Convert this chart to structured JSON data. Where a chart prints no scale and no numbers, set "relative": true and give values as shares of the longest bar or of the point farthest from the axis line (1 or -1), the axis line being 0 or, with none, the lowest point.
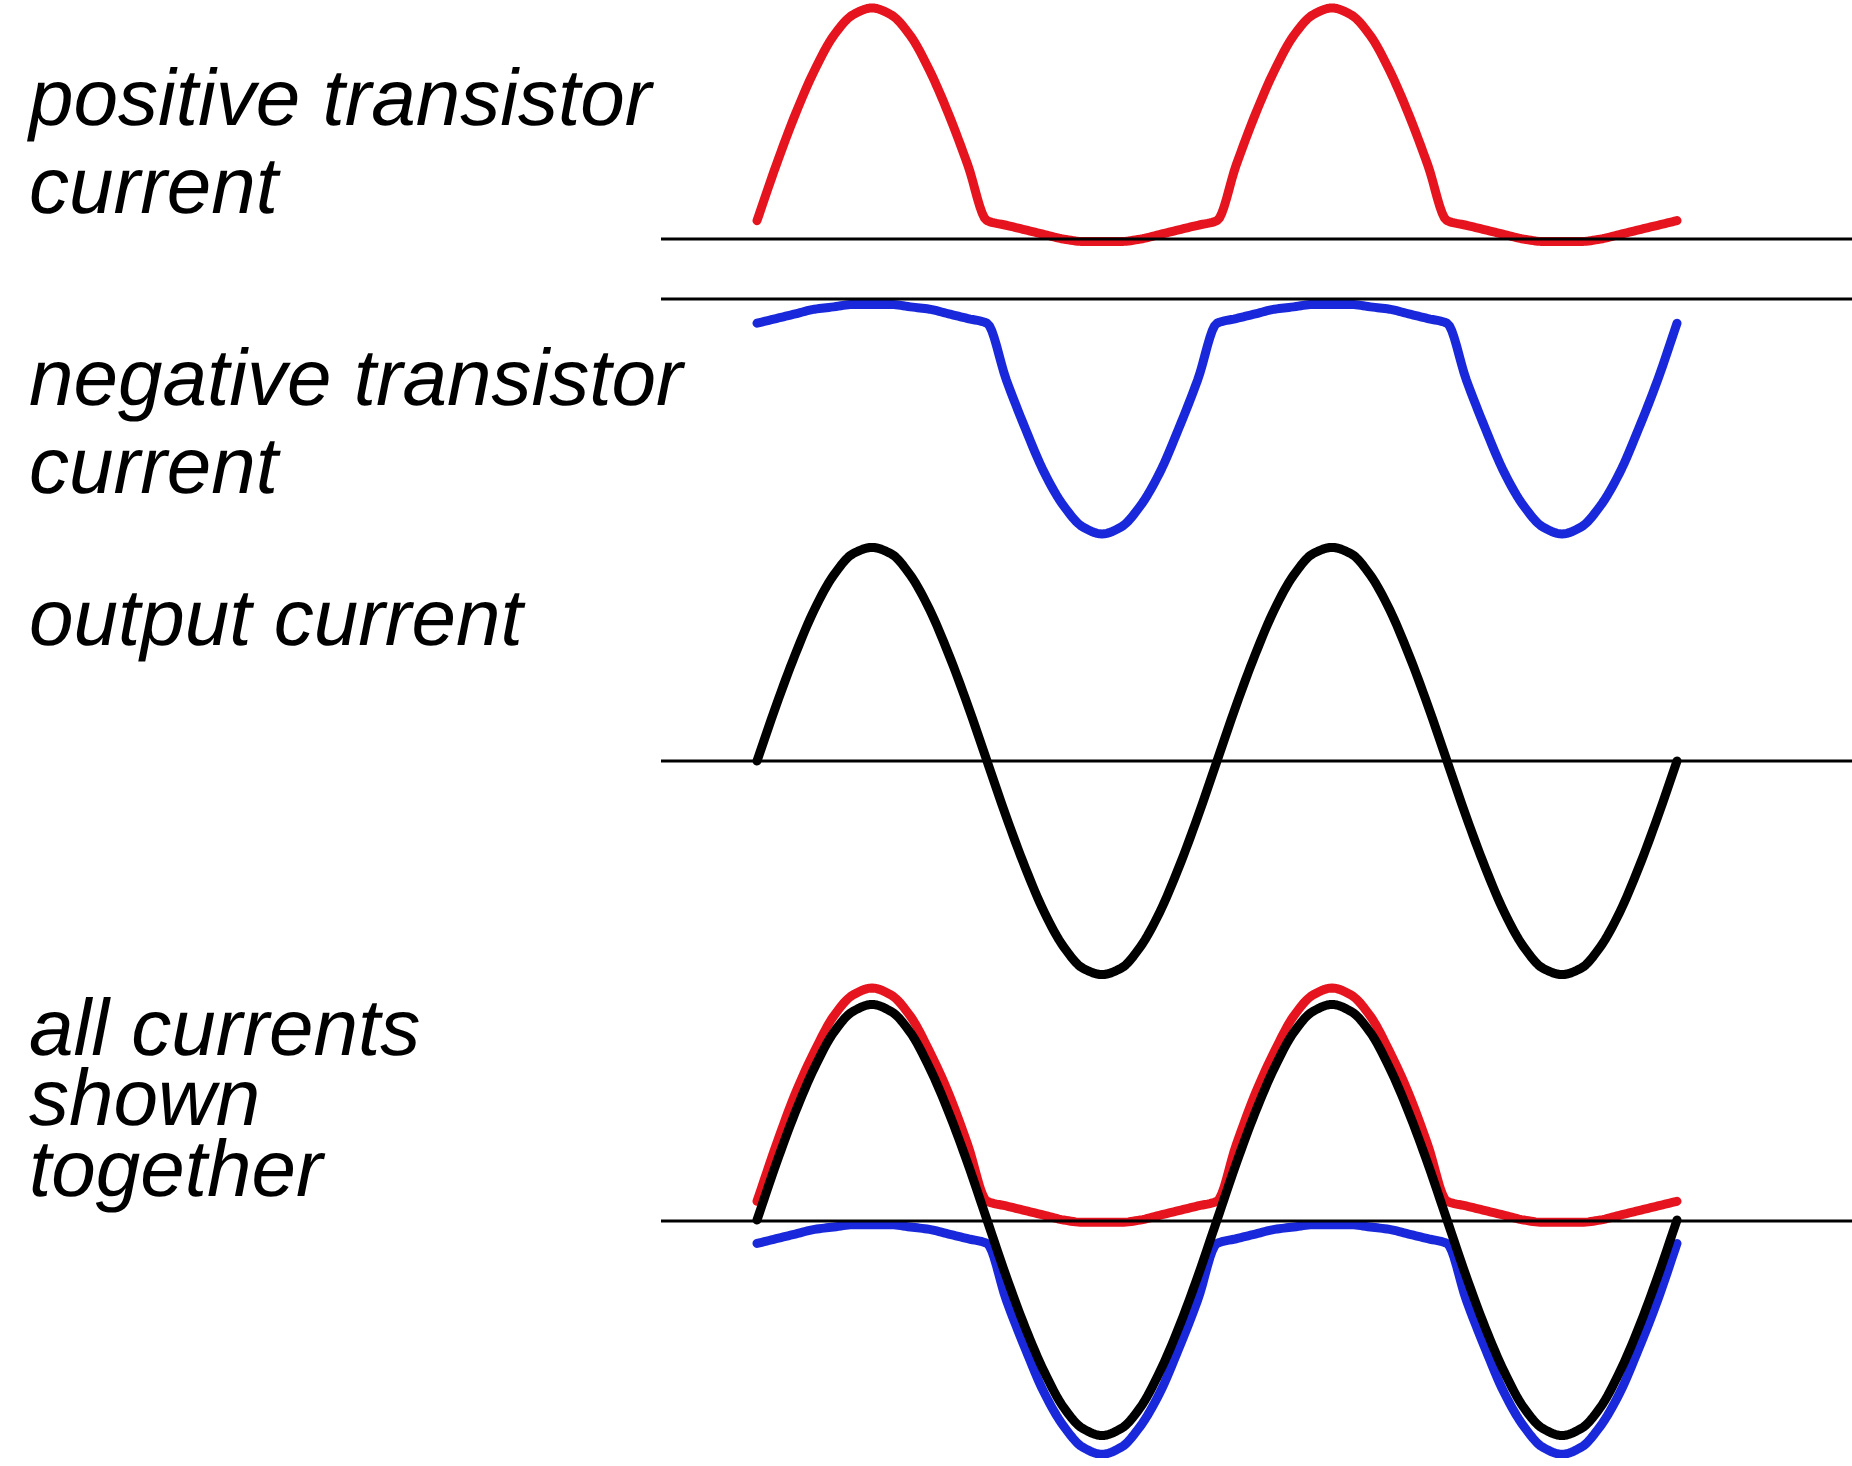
{
  "chart_data": [
    {
      "type": "line",
      "title": "positive transistor current",
      "relative": true,
      "categories": [
        null,
        null,
        null,
        null,
        null,
        null,
        null,
        null,
        null,
        null,
        null,
        null,
        null,
        null,
        null,
        null,
        null,
        null,
        null,
        null,
        null,
        null,
        null,
        null,
        null,
        null,
        null,
        null,
        null,
        null,
        null,
        null,
        null,
        null,
        null,
        null,
        null,
        null,
        null,
        null,
        null,
        null,
        null,
        null,
        null,
        null,
        null,
        null,
        null
      ],
      "series": [
        {
          "color": "#e6141e",
          "values": [
            0.08,
            0.32,
            0.54,
            0.73,
            0.88,
            0.97,
            1.0,
            0.97,
            0.88,
            0.73,
            0.54,
            0.32,
            0.08,
            0.06,
            0.04,
            0.02,
            0.0,
            -0.01,
            -0.01,
            -0.01,
            0.0,
            0.02,
            0.04,
            0.06,
            0.08,
            0.32,
            0.54,
            0.73,
            0.88,
            0.97,
            1.0,
            0.97,
            0.88,
            0.73,
            0.54,
            0.32,
            0.08,
            0.06,
            0.04,
            0.02,
            0.0,
            -0.01,
            -0.01,
            -0.01,
            0.0,
            0.02,
            0.04,
            0.06,
            0.08
          ]
        }
      ]
    },
    {
      "type": "line",
      "title": "negative transistor current",
      "relative": true,
      "categories": [
        null,
        null,
        null,
        null,
        null,
        null,
        null,
        null,
        null,
        null,
        null,
        null,
        null,
        null,
        null,
        null,
        null,
        null,
        null,
        null,
        null,
        null,
        null,
        null,
        null,
        null,
        null,
        null,
        null,
        null,
        null,
        null,
        null,
        null,
        null,
        null,
        null,
        null,
        null,
        null,
        null,
        null,
        null,
        null,
        null,
        null,
        null,
        null,
        null
      ],
      "series": [
        {
          "color": "#1a28dc",
          "values": [
            -0.1,
            -0.08,
            -0.06,
            -0.04,
            -0.03,
            -0.02,
            -0.02,
            -0.02,
            -0.03,
            -0.04,
            -0.06,
            -0.08,
            -0.1,
            -0.34,
            -0.55,
            -0.74,
            -0.88,
            -0.97,
            -1.0,
            -0.97,
            -0.88,
            -0.74,
            -0.55,
            -0.34,
            -0.1,
            -0.08,
            -0.06,
            -0.04,
            -0.03,
            -0.02,
            -0.02,
            -0.02,
            -0.03,
            -0.04,
            -0.06,
            -0.08,
            -0.1,
            -0.34,
            -0.55,
            -0.74,
            -0.88,
            -0.97,
            -1.0,
            -0.97,
            -0.88,
            -0.74,
            -0.55,
            -0.34,
            -0.1
          ]
        }
      ]
    },
    {
      "type": "line",
      "title": "output current",
      "relative": true,
      "categories": [
        null,
        null,
        null,
        null,
        null,
        null,
        null,
        null,
        null,
        null,
        null,
        null,
        null,
        null,
        null,
        null,
        null,
        null,
        null,
        null,
        null,
        null,
        null,
        null,
        null,
        null,
        null,
        null,
        null,
        null,
        null,
        null,
        null,
        null,
        null,
        null,
        null,
        null,
        null,
        null,
        null,
        null,
        null,
        null,
        null,
        null,
        null,
        null,
        null
      ],
      "series": [
        {
          "color": "#000000",
          "values": [
            0,
            0.26,
            0.5,
            0.71,
            0.87,
            0.97,
            1.0,
            0.97,
            0.87,
            0.71,
            0.5,
            0.26,
            0,
            -0.26,
            -0.5,
            -0.71,
            -0.87,
            -0.97,
            -1.0,
            -0.97,
            -0.87,
            -0.71,
            -0.5,
            -0.26,
            0,
            0.26,
            0.5,
            0.71,
            0.87,
            0.97,
            1.0,
            0.97,
            0.87,
            0.71,
            0.5,
            0.26,
            0,
            -0.26,
            -0.5,
            -0.71,
            -0.87,
            -0.97,
            -1.0,
            -0.97,
            -0.87,
            -0.71,
            -0.5,
            -0.26,
            0
          ]
        }
      ]
    },
    {
      "type": "line",
      "title": "all currents shown together",
      "relative": true,
      "categories": [
        null,
        null,
        null,
        null,
        null,
        null,
        null,
        null,
        null,
        null,
        null,
        null,
        null,
        null,
        null,
        null,
        null,
        null,
        null,
        null,
        null,
        null,
        null,
        null,
        null,
        null,
        null,
        null,
        null,
        null,
        null,
        null,
        null,
        null,
        null,
        null,
        null,
        null,
        null,
        null,
        null,
        null,
        null,
        null,
        null,
        null,
        null,
        null,
        null
      ],
      "series": [
        {
          "color": "#e6141e",
          "values": [
            0.08,
            0.32,
            0.54,
            0.72,
            0.87,
            0.96,
            0.99,
            0.96,
            0.87,
            0.72,
            0.54,
            0.32,
            0.08,
            0.06,
            0.04,
            0.02,
            0.0,
            -0.01,
            -0.01,
            -0.01,
            0.0,
            0.02,
            0.04,
            0.06,
            0.08,
            0.32,
            0.54,
            0.72,
            0.87,
            0.96,
            0.99,
            0.96,
            0.87,
            0.72,
            0.54,
            0.32,
            0.08,
            0.06,
            0.04,
            0.02,
            0.0,
            -0.01,
            -0.01,
            -0.01,
            0.0,
            0.02,
            0.04,
            0.06,
            0.08
          ]
        },
        {
          "color": "#1a28dc",
          "values": [
            -0.1,
            -0.08,
            -0.06,
            -0.04,
            -0.03,
            -0.02,
            -0.02,
            -0.02,
            -0.03,
            -0.04,
            -0.06,
            -0.08,
            -0.1,
            -0.34,
            -0.55,
            -0.74,
            -0.88,
            -0.97,
            -1.0,
            -0.97,
            -0.88,
            -0.74,
            -0.55,
            -0.34,
            -0.1,
            -0.08,
            -0.06,
            -0.04,
            -0.03,
            -0.02,
            -0.02,
            -0.02,
            -0.03,
            -0.04,
            -0.06,
            -0.08,
            -0.1,
            -0.34,
            -0.55,
            -0.74,
            -0.88,
            -0.97,
            -1.0,
            -0.97,
            -0.88,
            -0.74,
            -0.55,
            -0.34,
            -0.1
          ]
        },
        {
          "color": "#000000",
          "values": [
            0,
            0.24,
            0.46,
            0.65,
            0.8,
            0.89,
            0.92,
            0.89,
            0.8,
            0.65,
            0.46,
            0.24,
            0,
            -0.24,
            -0.46,
            -0.65,
            -0.8,
            -0.89,
            -0.92,
            -0.89,
            -0.8,
            -0.65,
            -0.46,
            -0.24,
            0,
            0.24,
            0.46,
            0.65,
            0.8,
            0.89,
            0.92,
            0.89,
            0.8,
            0.65,
            0.46,
            0.24,
            0,
            -0.24,
            -0.46,
            -0.65,
            -0.8,
            -0.89,
            -0.92,
            -0.89,
            -0.8,
            -0.65,
            -0.46,
            -0.24,
            0
          ]
        }
      ]
    }
  ]
}
